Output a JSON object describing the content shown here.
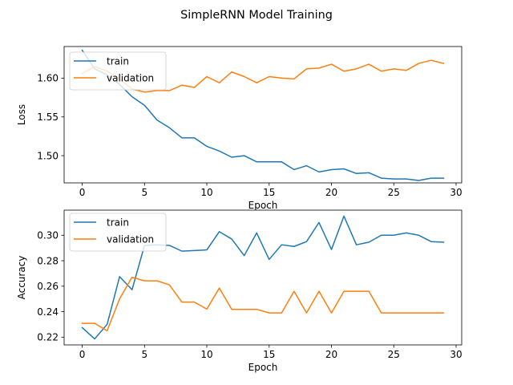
{
  "figure": {
    "title": "SimpleRNN Model Training"
  },
  "chart_data": [
    {
      "type": "line",
      "title": "",
      "xlabel": "Epoch",
      "ylabel": "Loss",
      "x": [
        0,
        1,
        2,
        3,
        4,
        5,
        6,
        7,
        8,
        9,
        10,
        11,
        12,
        13,
        14,
        15,
        16,
        17,
        18,
        19,
        20,
        21,
        22,
        23,
        24,
        25,
        26,
        27,
        28,
        29
      ],
      "xlim": [
        -1.45,
        30.45
      ],
      "ylim": [
        1.4649,
        1.6408
      ],
      "xticks": [
        0,
        5,
        10,
        15,
        20,
        25,
        30
      ],
      "yticks": [
        1.5,
        1.55,
        1.6
      ],
      "ytick_labels": [
        "1.50",
        "1.55",
        "1.60"
      ],
      "legend": "upper left",
      "grid": false,
      "series": [
        {
          "name": "train",
          "color": "#1f77b4",
          "values": [
            1.636,
            1.612,
            1.604,
            1.592,
            1.576,
            1.565,
            1.546,
            1.536,
            1.523,
            1.523,
            1.512,
            1.506,
            1.498,
            1.5,
            1.492,
            1.492,
            1.492,
            1.482,
            1.487,
            1.479,
            1.482,
            1.483,
            1.477,
            1.478,
            1.471,
            1.47,
            1.47,
            1.468,
            1.471,
            1.471
          ]
        },
        {
          "name": "validation",
          "color": "#ff7f0e",
          "values": [
            1.606,
            1.615,
            1.609,
            1.599,
            1.586,
            1.582,
            1.584,
            1.584,
            1.591,
            1.588,
            1.602,
            1.594,
            1.608,
            1.602,
            1.594,
            1.602,
            1.6,
            1.599,
            1.612,
            1.613,
            1.618,
            1.609,
            1.612,
            1.618,
            1.609,
            1.612,
            1.61,
            1.619,
            1.623,
            1.619
          ]
        }
      ]
    },
    {
      "type": "line",
      "title": "",
      "xlabel": "Epoch",
      "ylabel": "Accuracy",
      "x": [
        0,
        1,
        2,
        3,
        4,
        5,
        6,
        7,
        8,
        9,
        10,
        11,
        12,
        13,
        14,
        15,
        16,
        17,
        18,
        19,
        20,
        21,
        22,
        23,
        24,
        25,
        26,
        27,
        28,
        29
      ],
      "xlim": [
        -1.45,
        30.45
      ],
      "ylim": [
        0.2139,
        0.3197
      ],
      "xticks": [
        0,
        5,
        10,
        15,
        20,
        25,
        30
      ],
      "yticks": [
        0.22,
        0.24,
        0.26,
        0.28,
        0.3
      ],
      "ytick_labels": [
        "0.22",
        "0.24",
        "0.26",
        "0.28",
        "0.30"
      ],
      "legend": "upper left",
      "grid": false,
      "series": [
        {
          "name": "train",
          "color": "#1f77b4",
          "values": [
            0.2275,
            0.2186,
            0.23,
            0.2675,
            0.2572,
            0.292,
            0.2925,
            0.292,
            0.2875,
            0.288,
            0.2885,
            0.3028,
            0.297,
            0.284,
            0.3018,
            0.281,
            0.2925,
            0.2912,
            0.295,
            0.31,
            0.2888,
            0.315,
            0.2925,
            0.2945,
            0.3,
            0.3,
            0.3018,
            0.3,
            0.295,
            0.2945
          ]
        },
        {
          "name": "validation",
          "color": "#ff7f0e",
          "values": [
            0.2308,
            0.2308,
            0.225,
            0.25,
            0.267,
            0.2642,
            0.2642,
            0.261,
            0.2475,
            0.2475,
            0.242,
            0.2585,
            0.2418,
            0.2418,
            0.2418,
            0.239,
            0.239,
            0.256,
            0.239,
            0.256,
            0.239,
            0.256,
            0.256,
            0.256,
            0.239,
            0.239,
            0.239,
            0.239,
            0.239,
            0.239
          ]
        }
      ]
    }
  ]
}
